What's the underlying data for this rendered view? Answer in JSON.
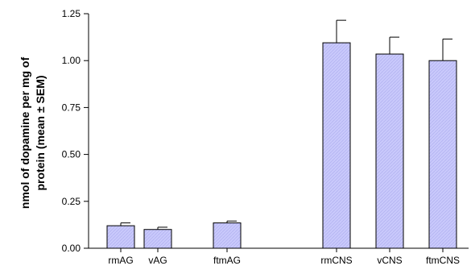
{
  "chart_data": {
    "type": "bar",
    "ylabel_lines": [
      "nmol of dopamine per mg of",
      "protein (mean ± SEM)"
    ],
    "xlabel": "",
    "ylim": [
      0,
      1.25
    ],
    "yticks": [
      "0.00",
      "0.25",
      "0.50",
      "0.75",
      "1.00",
      "1.25"
    ],
    "ytick_values": [
      0,
      0.25,
      0.5,
      0.75,
      1.0,
      1.25
    ],
    "categories": [
      "rmAG",
      "vAG",
      "ftmAG",
      "rmCNS",
      "vCNS",
      "ftmCNS"
    ],
    "values": [
      0.12,
      0.1,
      0.135,
      1.095,
      1.035,
      1.0
    ],
    "errors": [
      0.015,
      0.012,
      0.01,
      0.12,
      0.09,
      0.115
    ],
    "grid": false,
    "bar_color": "#c8c8ff"
  }
}
